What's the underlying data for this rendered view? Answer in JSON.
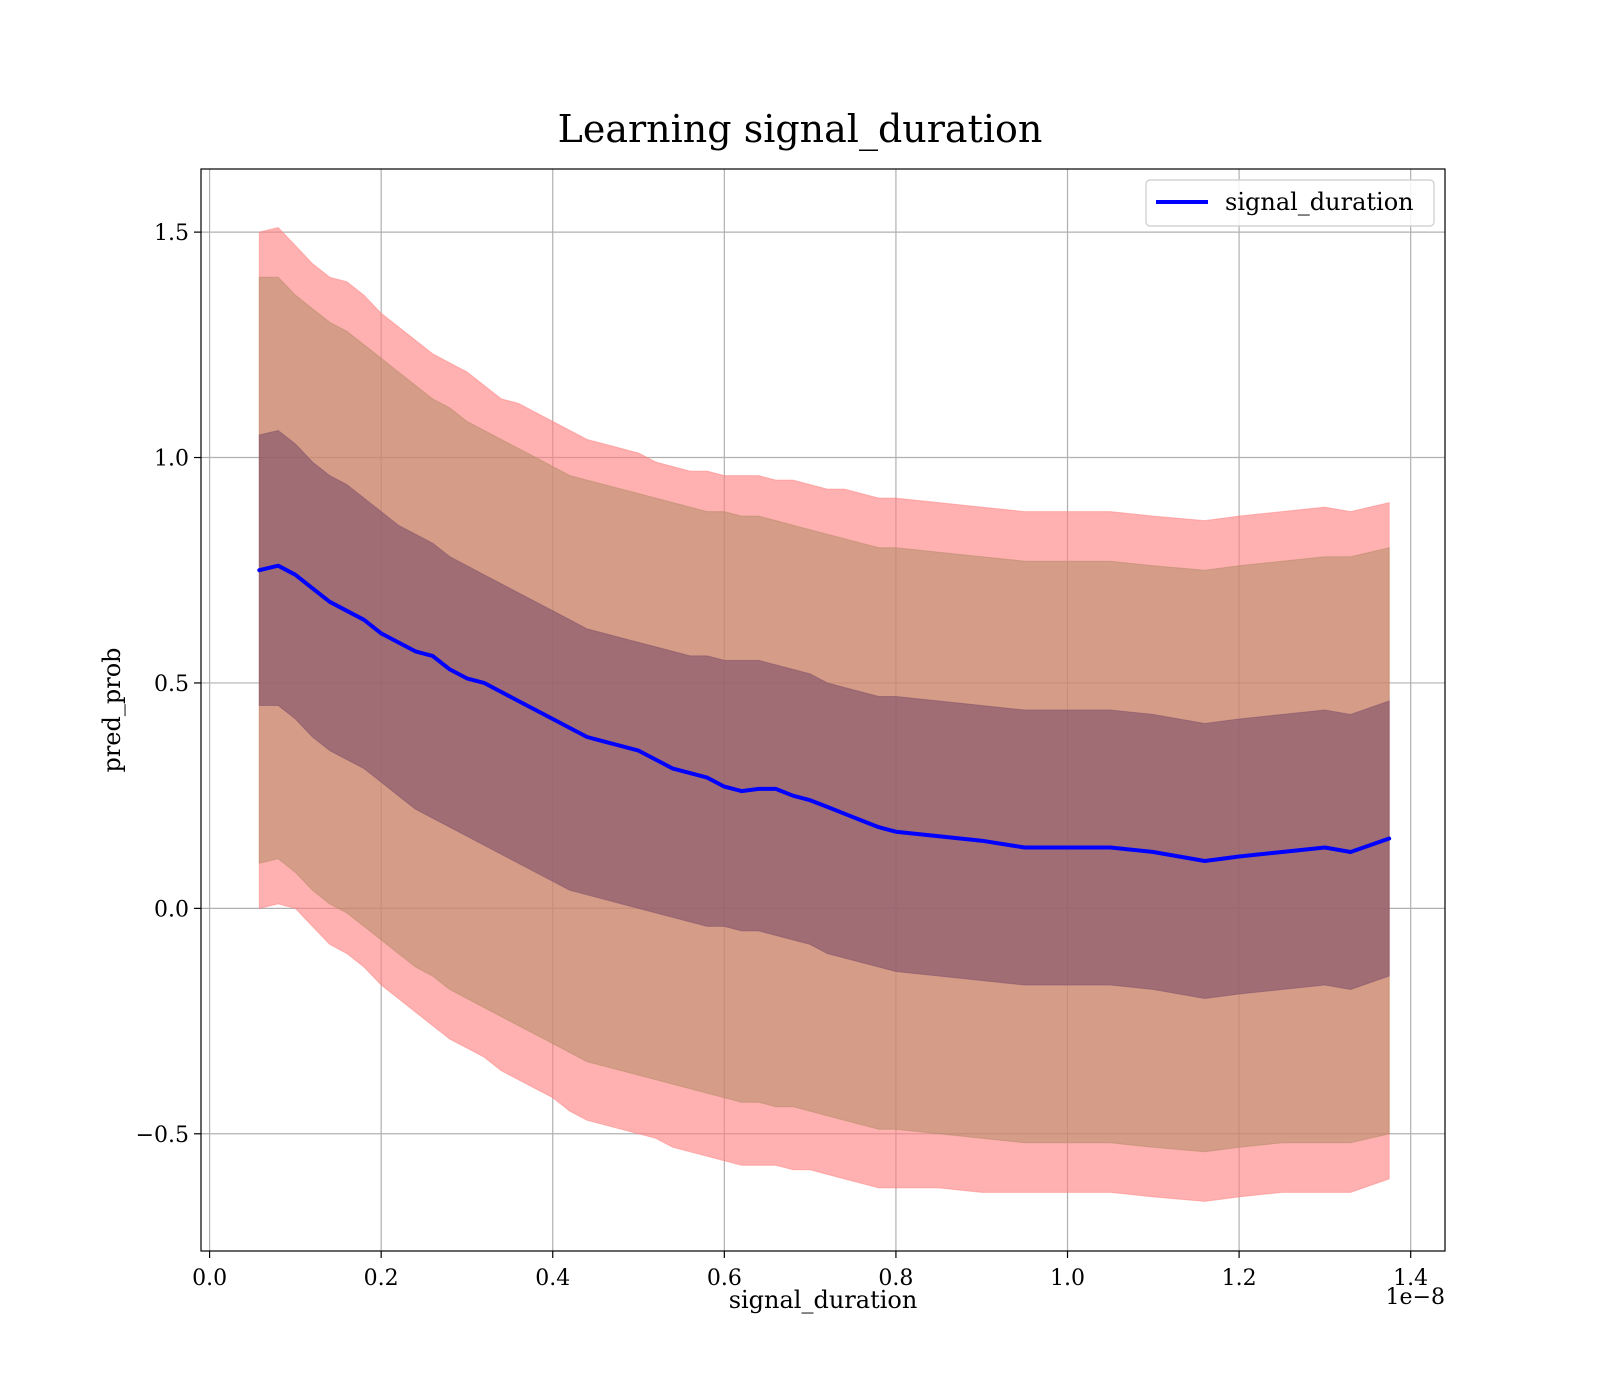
{
  "chart_data": {
    "type": "line",
    "title": "Learning signal_duration",
    "xlabel": "signal_duration",
    "ylabel": "pred_prob",
    "x_offset_text": "1e−8",
    "xlim": [
      -0.01,
      1.44
    ],
    "ylim": [
      -0.76,
      1.64
    ],
    "x_ticks": [
      0.0,
      0.2,
      0.4,
      0.6,
      0.8,
      1.0,
      1.2,
      1.4
    ],
    "x_tick_labels": [
      "0.0",
      "0.2",
      "0.4",
      "0.6",
      "0.8",
      "1.0",
      "1.2",
      "1.4"
    ],
    "y_ticks": [
      -0.5,
      0.0,
      0.5,
      1.0,
      1.5
    ],
    "y_tick_labels": [
      "−0.5",
      "0.0",
      "0.5",
      "1.0",
      "1.5"
    ],
    "grid": true,
    "legend": {
      "location": "top-right",
      "entries": [
        "signal_duration"
      ]
    },
    "colors": {
      "line": "#0000ff",
      "outer_band": "#ff8080",
      "middle_band": "#b38c66",
      "inner_band": "#80506a"
    },
    "x": [
      0.058,
      0.08,
      0.1,
      0.12,
      0.14,
      0.16,
      0.18,
      0.2,
      0.22,
      0.24,
      0.26,
      0.28,
      0.3,
      0.32,
      0.34,
      0.36,
      0.38,
      0.4,
      0.42,
      0.44,
      0.46,
      0.48,
      0.5,
      0.52,
      0.54,
      0.56,
      0.58,
      0.6,
      0.62,
      0.64,
      0.66,
      0.68,
      0.7,
      0.72,
      0.74,
      0.76,
      0.78,
      0.8,
      0.85,
      0.9,
      0.95,
      1.0,
      1.05,
      1.1,
      1.16,
      1.2,
      1.25,
      1.3,
      1.33,
      1.375
    ],
    "series": [
      {
        "name": "signal_duration",
        "values": [
          0.75,
          0.76,
          0.74,
          0.71,
          0.68,
          0.66,
          0.64,
          0.61,
          0.59,
          0.57,
          0.56,
          0.53,
          0.51,
          0.5,
          0.48,
          0.46,
          0.44,
          0.42,
          0.4,
          0.38,
          0.37,
          0.36,
          0.35,
          0.33,
          0.31,
          0.3,
          0.29,
          0.27,
          0.26,
          0.265,
          0.265,
          0.25,
          0.24,
          0.225,
          0.21,
          0.195,
          0.18,
          0.17,
          0.16,
          0.15,
          0.135,
          0.135,
          0.135,
          0.125,
          0.105,
          0.115,
          0.125,
          0.135,
          0.125,
          0.155
        ]
      }
    ],
    "bands": [
      {
        "kind": "outer",
        "upper": [
          1.5,
          1.51,
          1.47,
          1.43,
          1.4,
          1.39,
          1.36,
          1.32,
          1.29,
          1.26,
          1.23,
          1.21,
          1.19,
          1.16,
          1.13,
          1.12,
          1.1,
          1.08,
          1.06,
          1.04,
          1.03,
          1.02,
          1.01,
          0.99,
          0.98,
          0.97,
          0.97,
          0.96,
          0.96,
          0.96,
          0.95,
          0.95,
          0.94,
          0.93,
          0.93,
          0.92,
          0.91,
          0.91,
          0.9,
          0.89,
          0.88,
          0.88,
          0.88,
          0.87,
          0.86,
          0.87,
          0.88,
          0.89,
          0.88,
          0.9
        ],
        "lower": [
          0.0,
          0.01,
          0.0,
          -0.04,
          -0.08,
          -0.1,
          -0.13,
          -0.17,
          -0.2,
          -0.23,
          -0.26,
          -0.29,
          -0.31,
          -0.33,
          -0.36,
          -0.38,
          -0.4,
          -0.42,
          -0.45,
          -0.47,
          -0.48,
          -0.49,
          -0.5,
          -0.51,
          -0.53,
          -0.54,
          -0.55,
          -0.56,
          -0.57,
          -0.57,
          -0.57,
          -0.58,
          -0.58,
          -0.59,
          -0.6,
          -0.61,
          -0.62,
          -0.62,
          -0.62,
          -0.63,
          -0.63,
          -0.63,
          -0.63,
          -0.64,
          -0.65,
          -0.64,
          -0.63,
          -0.63,
          -0.63,
          -0.6
        ]
      },
      {
        "kind": "middle",
        "upper": [
          1.4,
          1.4,
          1.36,
          1.33,
          1.3,
          1.28,
          1.25,
          1.22,
          1.19,
          1.16,
          1.13,
          1.11,
          1.08,
          1.06,
          1.04,
          1.02,
          1.0,
          0.98,
          0.96,
          0.95,
          0.94,
          0.93,
          0.92,
          0.91,
          0.9,
          0.89,
          0.88,
          0.88,
          0.87,
          0.87,
          0.86,
          0.85,
          0.84,
          0.83,
          0.82,
          0.81,
          0.8,
          0.8,
          0.79,
          0.78,
          0.77,
          0.77,
          0.77,
          0.76,
          0.75,
          0.76,
          0.77,
          0.78,
          0.78,
          0.8
        ],
        "lower": [
          0.1,
          0.11,
          0.08,
          0.04,
          0.01,
          -0.01,
          -0.04,
          -0.07,
          -0.1,
          -0.13,
          -0.15,
          -0.18,
          -0.2,
          -0.22,
          -0.24,
          -0.26,
          -0.28,
          -0.3,
          -0.32,
          -0.34,
          -0.35,
          -0.36,
          -0.37,
          -0.38,
          -0.39,
          -0.4,
          -0.41,
          -0.42,
          -0.43,
          -0.43,
          -0.44,
          -0.44,
          -0.45,
          -0.46,
          -0.47,
          -0.48,
          -0.49,
          -0.49,
          -0.5,
          -0.51,
          -0.52,
          -0.52,
          -0.52,
          -0.53,
          -0.54,
          -0.53,
          -0.52,
          -0.52,
          -0.52,
          -0.5
        ]
      },
      {
        "kind": "inner",
        "upper": [
          1.05,
          1.06,
          1.03,
          0.99,
          0.96,
          0.94,
          0.91,
          0.88,
          0.85,
          0.83,
          0.81,
          0.78,
          0.76,
          0.74,
          0.72,
          0.7,
          0.68,
          0.66,
          0.64,
          0.62,
          0.61,
          0.6,
          0.59,
          0.58,
          0.57,
          0.56,
          0.56,
          0.55,
          0.55,
          0.55,
          0.54,
          0.53,
          0.52,
          0.5,
          0.49,
          0.48,
          0.47,
          0.47,
          0.46,
          0.45,
          0.44,
          0.44,
          0.44,
          0.43,
          0.41,
          0.42,
          0.43,
          0.44,
          0.43,
          0.46
        ],
        "lower": [
          0.45,
          0.45,
          0.42,
          0.38,
          0.35,
          0.33,
          0.31,
          0.28,
          0.25,
          0.22,
          0.2,
          0.18,
          0.16,
          0.14,
          0.12,
          0.1,
          0.08,
          0.06,
          0.04,
          0.03,
          0.02,
          0.01,
          0.0,
          -0.01,
          -0.02,
          -0.03,
          -0.04,
          -0.04,
          -0.05,
          -0.05,
          -0.06,
          -0.07,
          -0.08,
          -0.1,
          -0.11,
          -0.12,
          -0.13,
          -0.14,
          -0.15,
          -0.16,
          -0.17,
          -0.17,
          -0.17,
          -0.18,
          -0.2,
          -0.19,
          -0.18,
          -0.17,
          -0.18,
          -0.15
        ]
      }
    ]
  }
}
